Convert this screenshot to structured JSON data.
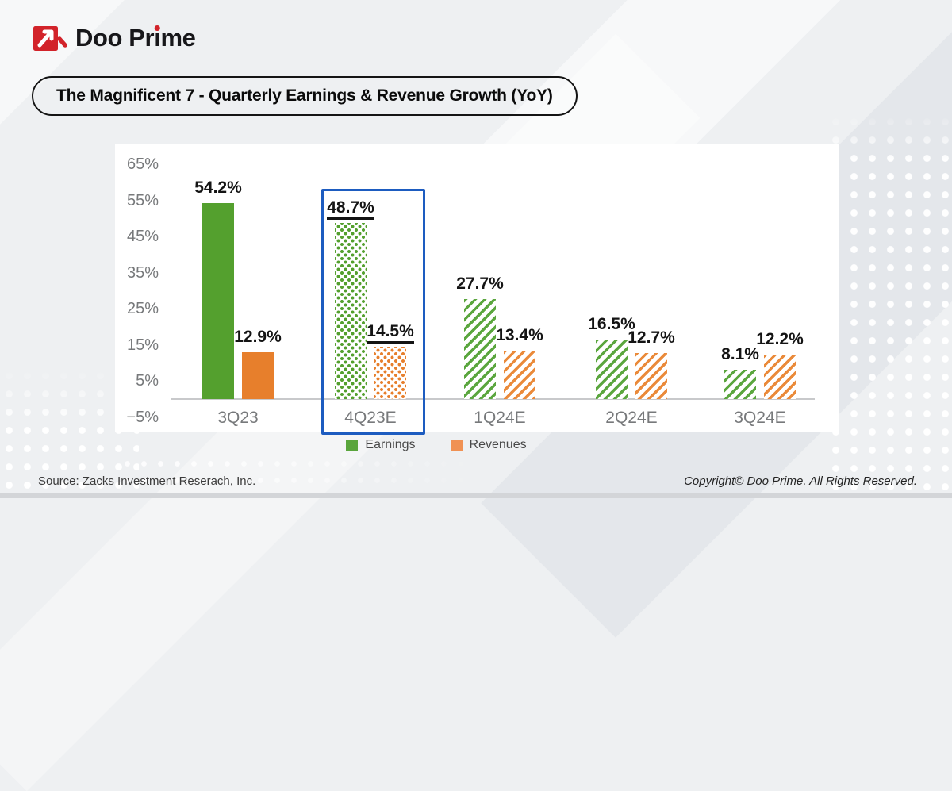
{
  "brand": {
    "name": "Doo Prime",
    "render": {
      "pre": "Doo Pr",
      "i": "ı",
      "post": "me"
    },
    "logo_red": "#d2232a"
  },
  "title": "The Magnificent 7 - Quarterly Earnings & Revenue Growth (YoY)",
  "chart_data": {
    "type": "bar",
    "title": "The Magnificent 7 - Quarterly Earnings & Revenue Growth (YoY)",
    "categories": [
      "3Q23",
      "4Q23E",
      "1Q24E",
      "2Q24E",
      "3Q24E"
    ],
    "series": [
      {
        "name": "Earnings",
        "key": "earnings",
        "color": "#54a02e",
        "values": [
          54.2,
          48.7,
          27.7,
          16.5,
          8.1
        ],
        "labels": [
          "54.2%",
          "48.7%",
          "27.7%",
          "16.5%",
          "8.1%"
        ]
      },
      {
        "name": "Revenues",
        "key": "revenues",
        "color": "#e77f2c",
        "values": [
          12.9,
          14.5,
          13.4,
          12.7,
          12.2
        ],
        "labels": [
          "12.9%",
          "14.5%",
          "13.4%",
          "12.7%",
          "12.2%"
        ]
      }
    ],
    "bar_styles": [
      "solid",
      "dots",
      "hatch",
      "hatch",
      "hatch"
    ],
    "highlight_category": "4Q23E",
    "highlight_box_color": "#1d5cc0",
    "ylim": [
      -5,
      65
    ],
    "ytick_values": [
      65,
      55,
      45,
      35,
      25,
      15,
      5,
      -5
    ],
    "ytick_labels": [
      "65%",
      "55%",
      "45%",
      "35%",
      "25%",
      "15%",
      "5%",
      "−5%"
    ],
    "grid": false,
    "legend_position": "bottom",
    "legend": [
      {
        "label": "Earnings",
        "color": "#5aa53c"
      },
      {
        "label": "Revenues",
        "color": "#f09153"
      }
    ]
  },
  "footer": {
    "source": "Source: Zacks Investment Reserach, Inc.",
    "copyright": "Copyright© Doo Prime. All Rights Reserved."
  }
}
